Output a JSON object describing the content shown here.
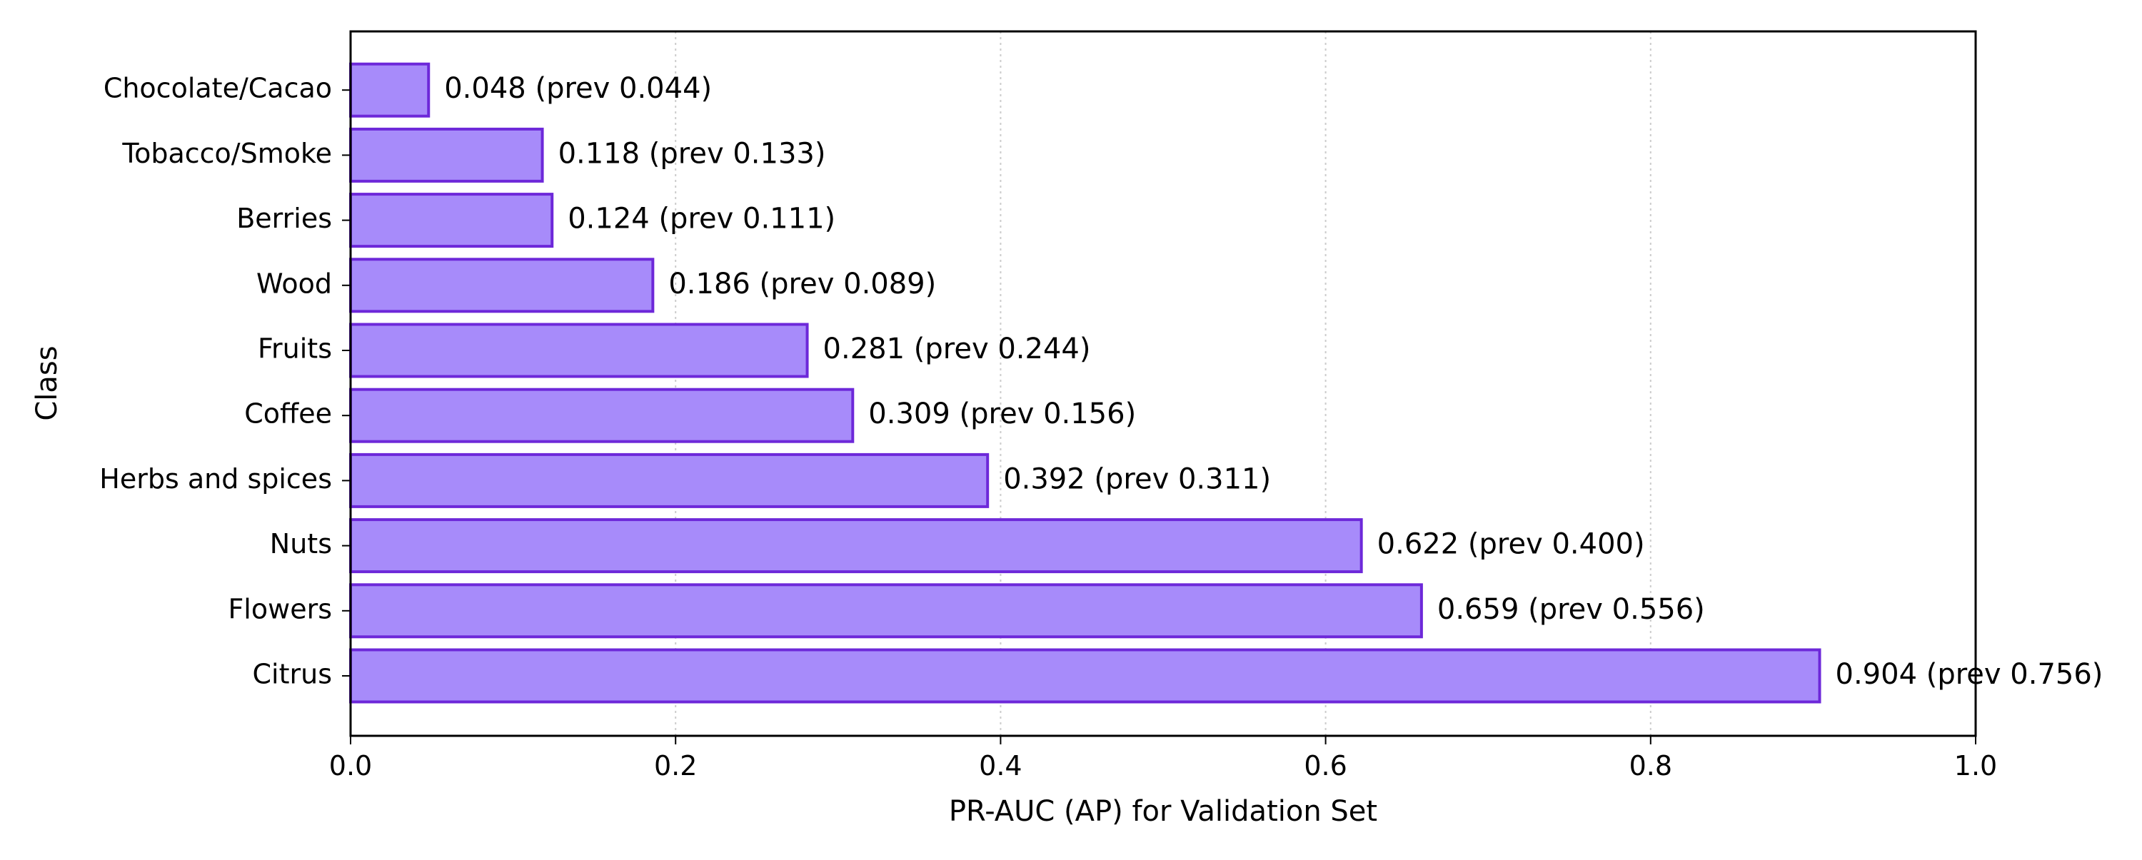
{
  "chart_data": {
    "type": "bar",
    "orientation": "horizontal",
    "title": "",
    "xlabel": "PR-AUC (AP) for Validation Set",
    "ylabel": "Class",
    "xlim": [
      0.0,
      1.0
    ],
    "xticks": [
      "0.0",
      "0.2",
      "0.4",
      "0.6",
      "0.8",
      "1.0"
    ],
    "grid": "x-axis dotted",
    "categories": [
      "Citrus",
      "Flowers",
      "Nuts",
      "Herbs and spices",
      "Coffee",
      "Fruits",
      "Wood",
      "Berries",
      "Tobacco/Smoke",
      "Chocolate/Cacao"
    ],
    "values": [
      0.904,
      0.659,
      0.622,
      0.392,
      0.309,
      0.281,
      0.186,
      0.124,
      0.118,
      0.048
    ],
    "previous_values": [
      0.756,
      0.556,
      0.4,
      0.311,
      0.156,
      0.244,
      0.089,
      0.111,
      0.133,
      0.044
    ],
    "data_labels": [
      "0.904  (prev 0.756)",
      "0.659  (prev 0.556)",
      "0.622  (prev 0.400)",
      "0.392  (prev 0.311)",
      "0.309  (prev 0.156)",
      "0.281  (prev 0.244)",
      "0.186  (prev 0.089)",
      "0.124  (prev 0.111)",
      "0.118  (prev 0.133)",
      "0.048  (prev 0.044)"
    ],
    "colors": {
      "bar_fill": "#a78bfa",
      "bar_edge": "#6d28d9",
      "grid": "#cccccc",
      "axis": "#000000"
    }
  }
}
